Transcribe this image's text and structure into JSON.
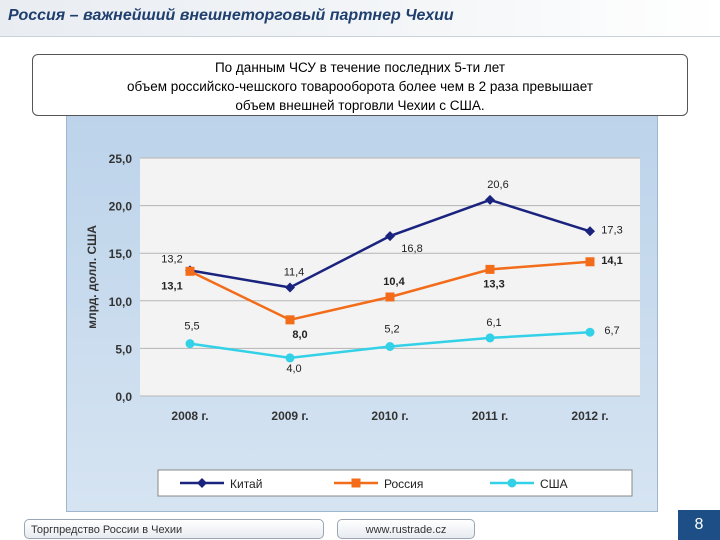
{
  "header": {
    "title": "Россия – важнейший внешнеторговый партнер Чехии"
  },
  "callout": {
    "lines": [
      "По данным ЧСУ в течение последних 5-ти лет",
      "объем российско-чешского товарооборота более чем в 2 раза превышает",
      "объем внешней торговли Чехии с США."
    ]
  },
  "footer": {
    "left": "Торгпредство России в Чехии",
    "middle": "www.rustrade.cz",
    "page_number": "8"
  },
  "chart_data": {
    "type": "line",
    "ylabel": "млрд. долл. США",
    "categories": [
      "2008 г.",
      "2009 г.",
      "2010 г.",
      "2011 г.",
      "2012 г."
    ],
    "ylim": [
      0,
      25
    ],
    "yticks": [
      "0,0",
      "5,0",
      "10,0",
      "15,0",
      "20,0",
      "25,0"
    ],
    "grid": true,
    "legend": "bottom",
    "series": [
      {
        "name": "Китай",
        "color": "#1a237e",
        "marker": "diamond",
        "values": [
          13.2,
          11.4,
          16.8,
          20.6,
          17.3
        ],
        "labels": [
          "13,2",
          "11,4",
          "16,8",
          "20,6",
          "17,3"
        ]
      },
      {
        "name": "Россия",
        "color": "#f26c1a",
        "marker": "square",
        "values": [
          13.1,
          8.0,
          10.4,
          13.3,
          14.1
        ],
        "labels": [
          "13,1",
          "8,0",
          "10,4",
          "13,3",
          "14,1"
        ]
      },
      {
        "name": "США",
        "color": "#33d1e8",
        "marker": "circle",
        "values": [
          5.5,
          4.0,
          5.2,
          6.1,
          6.7
        ],
        "labels": [
          "5,5",
          "4,0",
          "5,2",
          "6,1",
          "6,7"
        ]
      }
    ]
  }
}
